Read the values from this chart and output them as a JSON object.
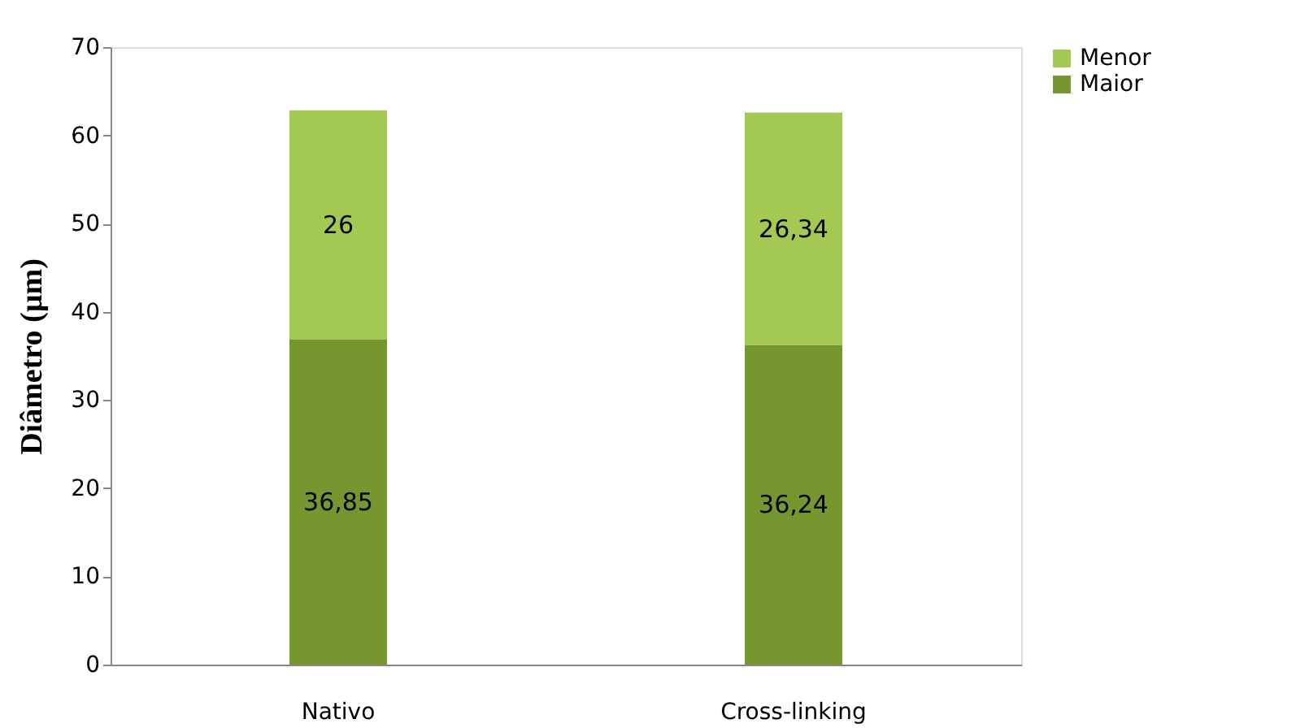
{
  "chart_data": {
    "type": "bar",
    "stacked": true,
    "ylabel": "Diâmetro (µm)",
    "categories": [
      "Nativo",
      "Cross-linking"
    ],
    "series": [
      {
        "name": "Maior",
        "color": "#76962f",
        "values": [
          36.85,
          36.24
        ],
        "value_labels": [
          "36,85",
          "36,24"
        ]
      },
      {
        "name": "Menor",
        "color": "#a4c952",
        "values": [
          26,
          26.34
        ],
        "value_labels": [
          "26",
          "26,34"
        ]
      }
    ],
    "ylim": [
      0,
      70
    ],
    "yticks": [
      0,
      10,
      20,
      30,
      40,
      50,
      60,
      70
    ],
    "grid": false,
    "legend": "right"
  }
}
